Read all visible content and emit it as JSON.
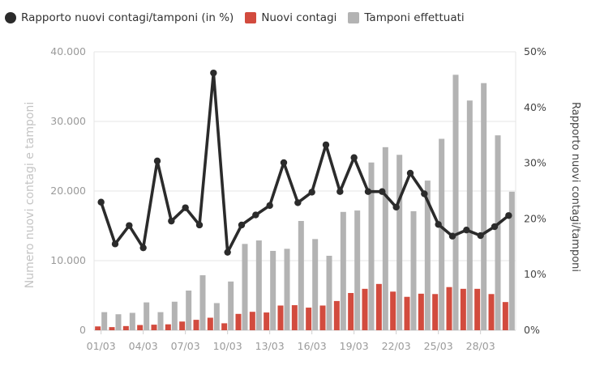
{
  "chart_data": {
    "type": "bar-line-combo",
    "legend": {
      "position": "top-left",
      "items": [
        {
          "label": "Rapporto nuovi contagi/tamponi (in %)",
          "color": "#2b2b2b",
          "shape": "circle"
        },
        {
          "label": "Nuovi contagi",
          "color": "#d24b3e",
          "shape": "square"
        },
        {
          "label": "Tamponi effettuati",
          "color": "#b3b3b3",
          "shape": "square"
        }
      ]
    },
    "ylabel_left": "Numero nuovi contagi e tamponi",
    "ylabel_right": "Rapporto nuovi contagi/tamponi",
    "ylim_left": [
      0,
      40000
    ],
    "ylim_right": [
      0,
      50
    ],
    "yticks_left": [
      {
        "value": 0,
        "label": "0"
      },
      {
        "value": 10000,
        "label": "10.000"
      },
      {
        "value": 20000,
        "label": "20.000"
      },
      {
        "value": 30000,
        "label": "30.000"
      },
      {
        "value": 40000,
        "label": "40.000"
      }
    ],
    "yticks_right": [
      {
        "value": 0,
        "label": "0%"
      },
      {
        "value": 10,
        "label": "10%"
      },
      {
        "value": 20,
        "label": "20%"
      },
      {
        "value": 30,
        "label": "30%"
      },
      {
        "value": 40,
        "label": "40%"
      },
      {
        "value": 50,
        "label": "50%"
      }
    ],
    "grid": true,
    "x": [
      "01/03",
      "02/03",
      "03/03",
      "04/03",
      "05/03",
      "06/03",
      "07/03",
      "08/03",
      "09/03",
      "10/03",
      "11/03",
      "12/03",
      "13/03",
      "14/03",
      "15/03",
      "16/03",
      "17/03",
      "18/03",
      "19/03",
      "20/03",
      "21/03",
      "22/03",
      "23/03",
      "24/03",
      "25/03",
      "26/03",
      "27/03",
      "28/03",
      "29/03",
      "30/03"
    ],
    "xtick_labels": [
      {
        "index": 0,
        "label": "01/03"
      },
      {
        "index": 3,
        "label": "04/03"
      },
      {
        "index": 6,
        "label": "07/03"
      },
      {
        "index": 9,
        "label": "10/03"
      },
      {
        "index": 12,
        "label": "13/03"
      },
      {
        "index": 15,
        "label": "16/03"
      },
      {
        "index": 18,
        "label": "19/03"
      },
      {
        "index": 21,
        "label": "22/03"
      },
      {
        "index": 24,
        "label": "25/03"
      },
      {
        "index": 27,
        "label": "28/03"
      }
    ],
    "series": [
      {
        "name": "Tamponi effettuati",
        "type": "bar",
        "axis": "left",
        "color": "#b3b3b3",
        "values": [
          2600,
          2300,
          2500,
          4000,
          2600,
          4100,
          5700,
          7900,
          3900,
          7000,
          12400,
          12900,
          11400,
          11700,
          15700,
          13100,
          10700,
          17000,
          17200,
          24100,
          26300,
          25200,
          17100,
          21500,
          27500,
          36700,
          33000,
          35500,
          28000,
          19900
        ]
      },
      {
        "name": "Nuovi contagi",
        "type": "bar",
        "axis": "left",
        "color": "#d24b3e",
        "values": [
          550,
          450,
          600,
          750,
          800,
          850,
          1250,
          1500,
          1800,
          1000,
          2350,
          2650,
          2550,
          3550,
          3600,
          3250,
          3550,
          4200,
          5350,
          5950,
          6650,
          5550,
          4800,
          5250,
          5200,
          6200,
          5950,
          5950,
          5200,
          4050
        ]
      },
      {
        "name": "Rapporto nuovi contagi/tamponi (in %)",
        "type": "line",
        "axis": "right",
        "color": "#2b2b2b",
        "values": [
          23,
          15.5,
          18.8,
          14.8,
          30.4,
          19.6,
          22,
          18.9,
          46.2,
          14,
          18.9,
          20.7,
          22.4,
          30.1,
          22.9,
          24.8,
          33.3,
          24.9,
          31,
          24.9,
          24.9,
          22.1,
          28.2,
          24.5,
          19,
          16.9,
          18,
          17,
          18.6,
          20.6
        ]
      }
    ]
  }
}
